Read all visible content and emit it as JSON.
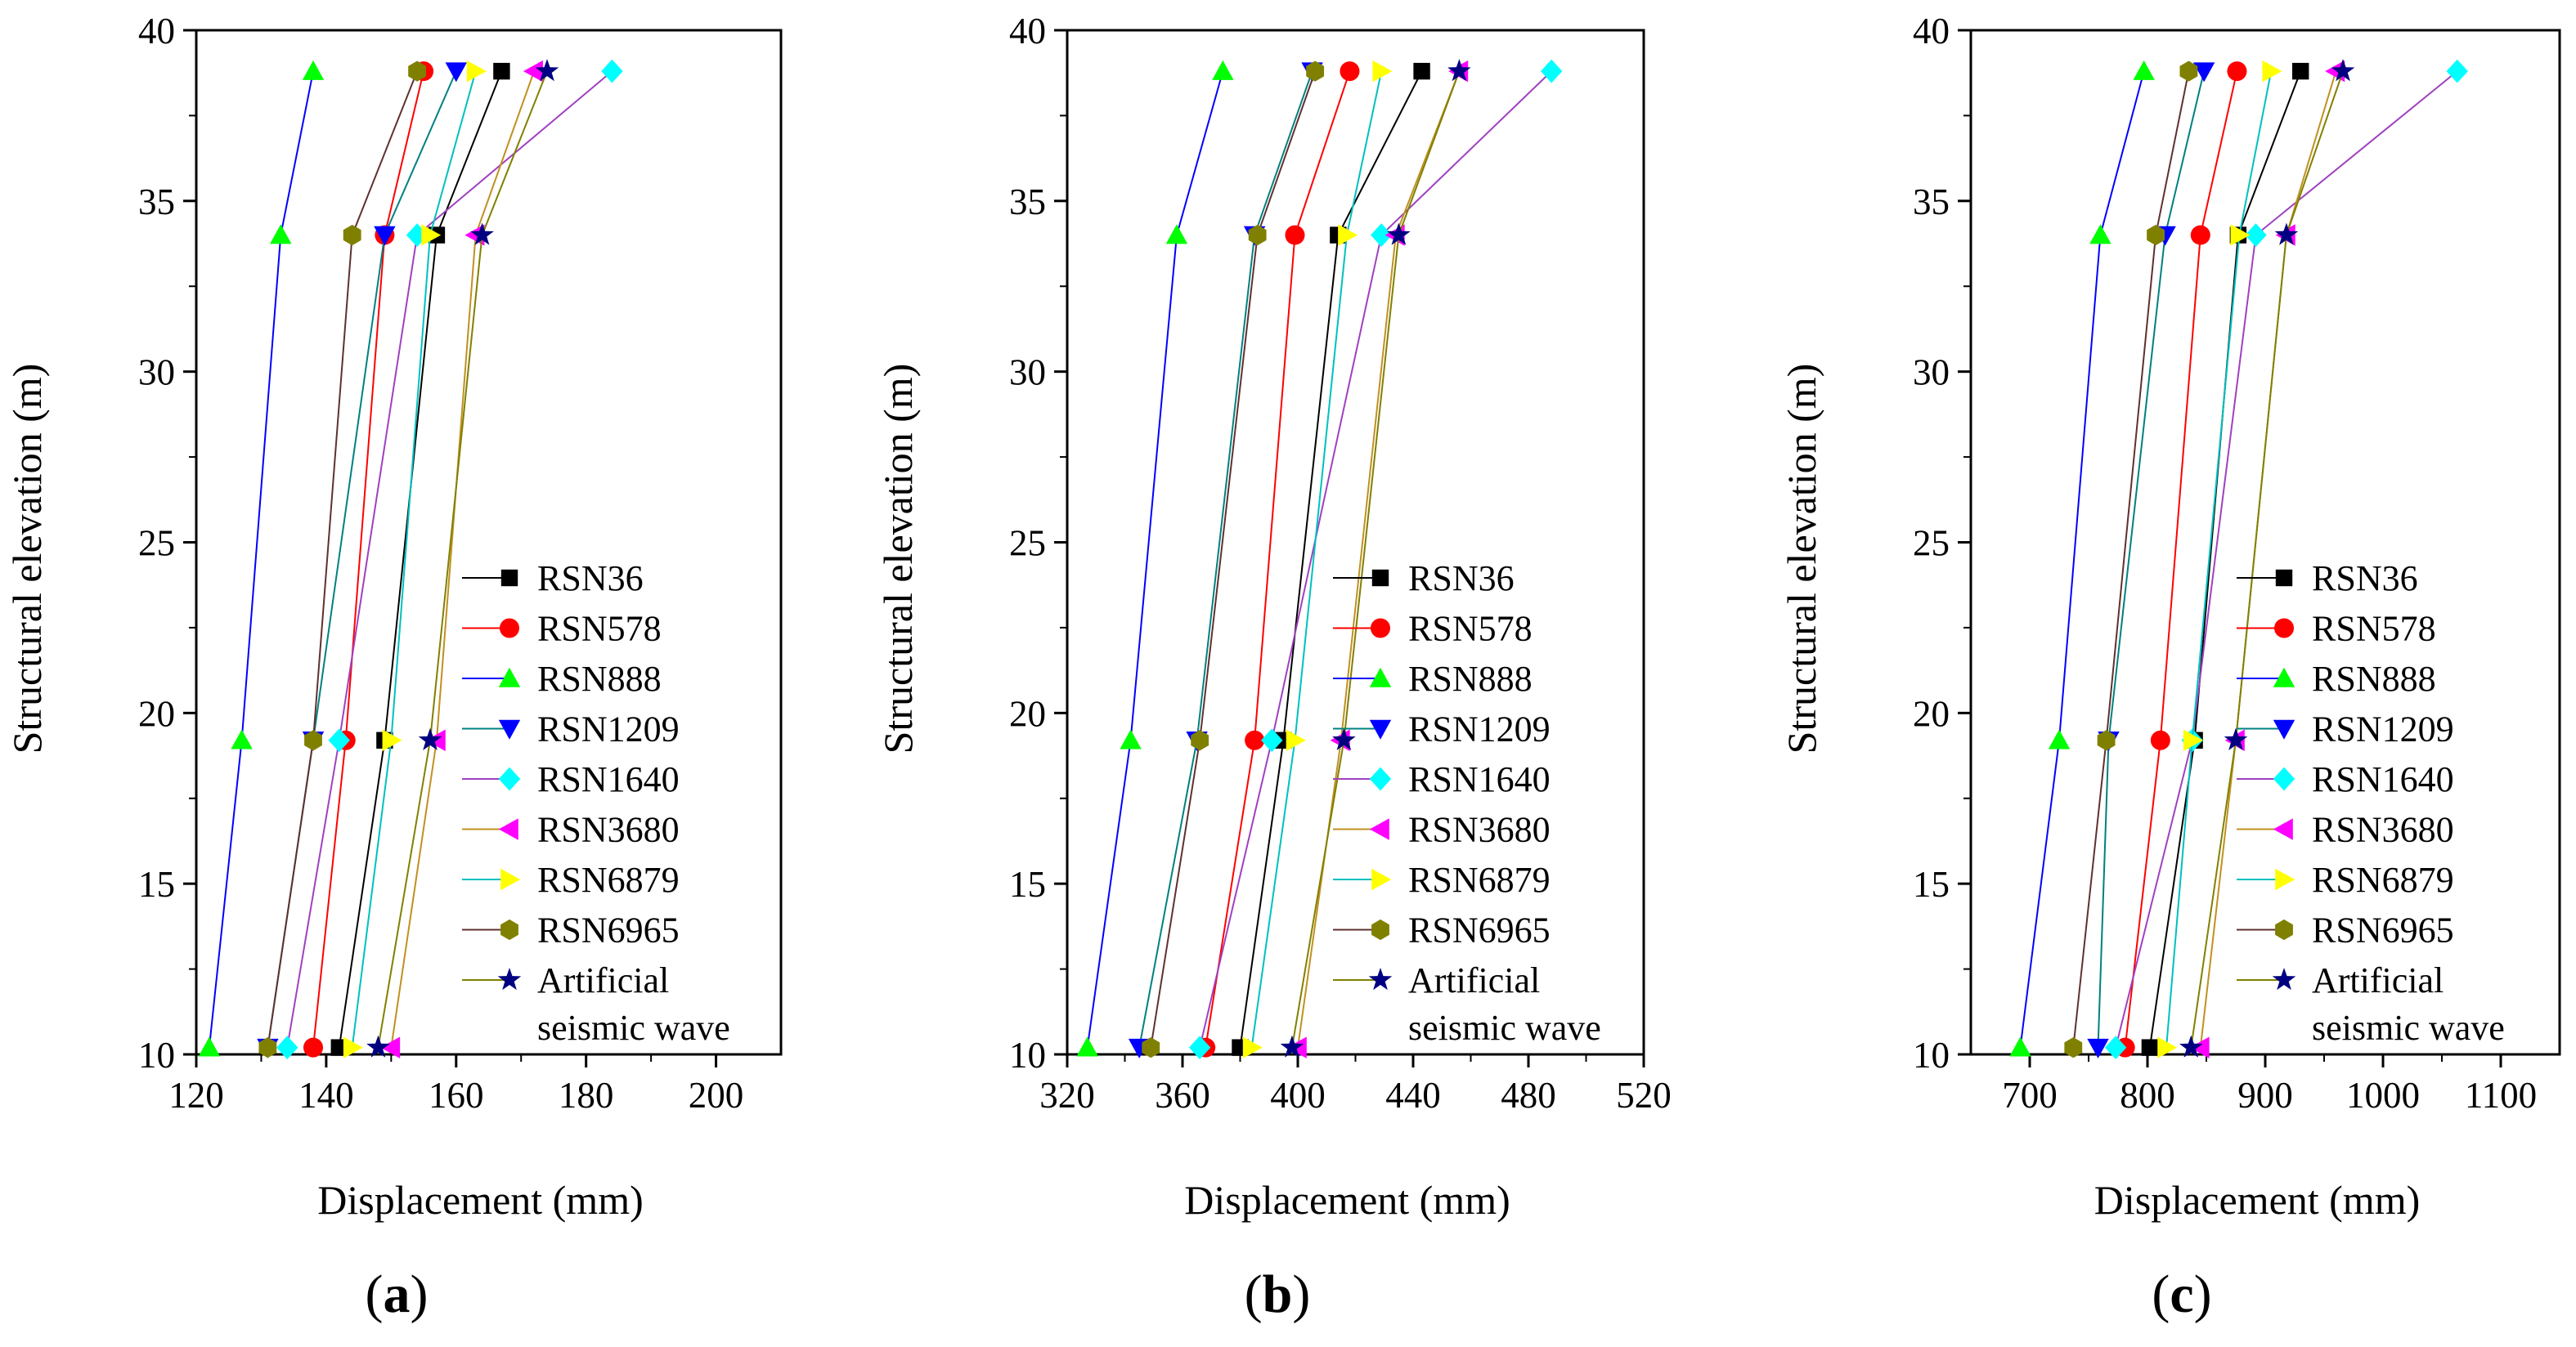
{
  "colors": {
    "RSN36": "#000000",
    "RSN578": "#ff0000",
    "RSN888": "#00ff00",
    "RSN1209": "#0000ff",
    "RSN1640": "#00ffff",
    "RSN3680": "#ff00ff",
    "RSN6879": "#ffff00",
    "RSN6965": "#808000",
    "Artificial": "#000080",
    "line_RSN36": "#000000",
    "line_RSN578": "#ff0000",
    "line_RSN888": "#0000ff",
    "line_RSN1209": "#008080",
    "line_RSN1640": "#a040c0",
    "line_RSN3680": "#c09020",
    "line_RSN6879": "#00c0c0",
    "line_RSN6965": "#603030",
    "line_Artificial": "#808000"
  },
  "legend": [
    {
      "key": "RSN36",
      "label": "RSN36",
      "marker": "square"
    },
    {
      "key": "RSN578",
      "label": "RSN578",
      "marker": "circle"
    },
    {
      "key": "RSN888",
      "label": "RSN888",
      "marker": "triangle-up"
    },
    {
      "key": "RSN1209",
      "label": "RSN1209",
      "marker": "triangle-down"
    },
    {
      "key": "RSN1640",
      "label": "RSN1640",
      "marker": "diamond"
    },
    {
      "key": "RSN3680",
      "label": "RSN3680",
      "marker": "triangle-left"
    },
    {
      "key": "RSN6879",
      "label": "RSN6879",
      "marker": "triangle-right"
    },
    {
      "key": "RSN6965",
      "label": "RSN6965",
      "marker": "hexagon"
    },
    {
      "key": "Artificial",
      "label": "Artificial",
      "label2": "seismic wave",
      "marker": "star"
    }
  ],
  "chart_data": [
    {
      "type": "line",
      "panel_label": "a",
      "xlabel": "Displacement (mm)",
      "ylabel": "Structural elevation (m)",
      "xlim": [
        120,
        210
      ],
      "ylim": [
        10,
        40
      ],
      "xticks": [
        120,
        140,
        160,
        180,
        200
      ],
      "yticks": [
        10,
        15,
        20,
        25,
        30,
        35,
        40
      ],
      "y": [
        10.2,
        19.2,
        34.0,
        38.8
      ],
      "series": [
        {
          "name": "RSN36",
          "x": [
            142,
            149,
            157,
            167
          ]
        },
        {
          "name": "RSN578",
          "x": [
            138,
            143,
            149,
            155
          ]
        },
        {
          "name": "RSN888",
          "x": [
            122,
            127,
            133,
            138
          ]
        },
        {
          "name": "RSN1209",
          "x": [
            131,
            138,
            149,
            160
          ]
        },
        {
          "name": "RSN1640",
          "x": [
            134,
            142,
            154,
            184
          ]
        },
        {
          "name": "RSN3680",
          "x": [
            150,
            157,
            163,
            172
          ]
        },
        {
          "name": "RSN6879",
          "x": [
            144,
            150,
            156,
            163
          ]
        },
        {
          "name": "RSN6965",
          "x": [
            131,
            138,
            144,
            154
          ]
        },
        {
          "name": "Artificial seismic wave",
          "x": [
            148,
            156,
            164,
            174
          ]
        }
      ]
    },
    {
      "type": "line",
      "panel_label": "b",
      "xlabel": "Displacement (mm)",
      "ylabel": "Structural elevation (m)",
      "xlim": [
        320,
        520
      ],
      "ylim": [
        10,
        40
      ],
      "xticks": [
        320,
        360,
        400,
        440,
        480,
        520
      ],
      "yticks": [
        10,
        15,
        20,
        25,
        30,
        35,
        40
      ],
      "y": [
        10.2,
        19.2,
        34.0,
        38.8
      ],
      "series": [
        {
          "name": "RSN36",
          "x": [
            380,
            395,
            414,
            443
          ]
        },
        {
          "name": "RSN578",
          "x": [
            368,
            385,
            399,
            418
          ]
        },
        {
          "name": "RSN888",
          "x": [
            327,
            342,
            358,
            374
          ]
        },
        {
          "name": "RSN1209",
          "x": [
            345,
            365,
            385,
            405
          ]
        },
        {
          "name": "RSN1640",
          "x": [
            366,
            391,
            429,
            488
          ]
        },
        {
          "name": "RSN3680",
          "x": [
            400,
            415,
            434,
            456
          ]
        },
        {
          "name": "RSN6879",
          "x": [
            384,
            399,
            417,
            429
          ]
        },
        {
          "name": "RSN6965",
          "x": [
            349,
            366,
            386,
            406
          ]
        },
        {
          "name": "Artificial seismic wave",
          "x": [
            398,
            416,
            435,
            456
          ]
        }
      ]
    },
    {
      "type": "line",
      "panel_label": "c",
      "xlabel": "Displacement (mm)",
      "ylabel": "Structural elevation (m)",
      "xlim": [
        650,
        1150
      ],
      "ylim": [
        10,
        40
      ],
      "xticks": [
        700,
        800,
        900,
        1000,
        1100
      ],
      "yticks": [
        10,
        15,
        20,
        25,
        30,
        35,
        40
      ],
      "y": [
        10.2,
        19.2,
        34.0,
        38.8
      ],
      "series": [
        {
          "name": "RSN36",
          "x": [
            802,
            840,
            877,
            930
          ]
        },
        {
          "name": "RSN578",
          "x": [
            781,
            811,
            845,
            876
          ]
        },
        {
          "name": "RSN888",
          "x": [
            692,
            725,
            760,
            797
          ]
        },
        {
          "name": "RSN1209",
          "x": [
            758,
            767,
            815,
            848
          ]
        },
        {
          "name": "RSN1640",
          "x": [
            773,
            838,
            892,
            1063
          ]
        },
        {
          "name": "RSN3680",
          "x": [
            845,
            875,
            918,
            960
          ]
        },
        {
          "name": "RSN6879",
          "x": [
            816,
            838,
            878,
            905
          ]
        },
        {
          "name": "RSN6965",
          "x": [
            737,
            765,
            807,
            835
          ]
        },
        {
          "name": "Artificial seismic wave",
          "x": [
            837,
            875,
            918,
            966
          ]
        }
      ]
    }
  ]
}
